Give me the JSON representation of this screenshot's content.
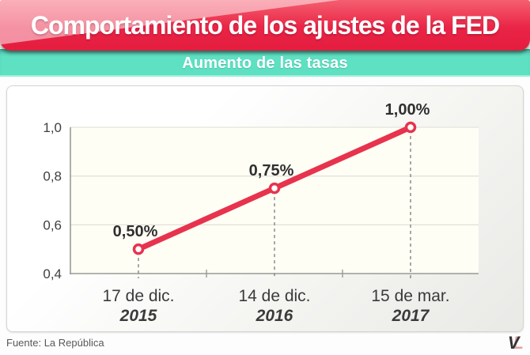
{
  "header": {
    "title": "Comportamiento de los ajustes de la FED",
    "subtitle": "Aumento de las tasas"
  },
  "footer": {
    "source": "Fuente: La República",
    "logo_v": "V",
    "logo_l": "L"
  },
  "colors": {
    "banner_red": "#ea2446",
    "banner_gloss_pink": "#f5a9b6",
    "teal": "#5ee0c3",
    "line_red": "#e7334d"
  },
  "chart_data": {
    "type": "line",
    "title": "Aumento de las tasas",
    "categories": [
      {
        "date": "17 de dic.",
        "year": "2015"
      },
      {
        "date": "14 de dic.",
        "year": "2016"
      },
      {
        "date": "15 de mar.",
        "year": "2017"
      }
    ],
    "values": [
      0.5,
      0.75,
      1.0
    ],
    "point_labels": [
      "0,50%",
      "0,75%",
      "1,00%"
    ],
    "y_ticks": {
      "values": [
        0.4,
        0.6,
        0.8,
        1.0
      ],
      "labels": [
        "0,4",
        "0,6",
        "0,8",
        "1,0"
      ]
    },
    "ylim": [
      0.4,
      1.0
    ],
    "grid": true,
    "legend": false,
    "colors": {
      "line": "#e7334d",
      "marker_fill": "#ffffff",
      "plot_bg": "#fffef5",
      "gridline": "#e3e3dc",
      "axis": "#999995",
      "dashed_guide": "#8a8a8a",
      "point_label": "#2f2f2f",
      "tick_label": "#3f3f3f",
      "x_label": "#3b3b3b"
    }
  }
}
